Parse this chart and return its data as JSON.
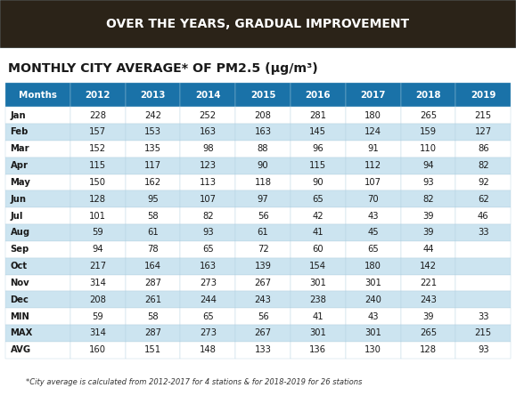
{
  "title": "OVER THE YEARS, GRADUAL IMPROVEMENT",
  "subtitle_main": "MONTHLY CITY AVERAGE* OF PM2.5 (",
  "subtitle_unit": "μg/m",
  "subtitle_exp": "3",
  "subtitle_end": ")",
  "footnote": "*City average is calculated from 2012-2017 for 4 stations & for 2018-2019 for 26 stations",
  "title_bg": "#2b2318",
  "title_fg": "#ffffff",
  "header_bg": "#1a72a8",
  "header_fg": "#ffffff",
  "alt_row_color": "#cce4f0",
  "white_row_color": "#ffffff",
  "columns": [
    "Months",
    "2012",
    "2013",
    "2014",
    "2015",
    "2016",
    "2017",
    "2018",
    "2019"
  ],
  "rows": [
    [
      "Jan",
      "228",
      "242",
      "252",
      "208",
      "281",
      "180",
      "265",
      "215"
    ],
    [
      "Feb",
      "157",
      "153",
      "163",
      "163",
      "145",
      "124",
      "159",
      "127"
    ],
    [
      "Mar",
      "152",
      "135",
      "98",
      "88",
      "96",
      "91",
      "110",
      "86"
    ],
    [
      "Apr",
      "115",
      "117",
      "123",
      "90",
      "115",
      "112",
      "94",
      "82"
    ],
    [
      "May",
      "150",
      "162",
      "113",
      "118",
      "90",
      "107",
      "93",
      "92"
    ],
    [
      "Jun",
      "128",
      "95",
      "107",
      "97",
      "65",
      "70",
      "82",
      "62"
    ],
    [
      "Jul",
      "101",
      "58",
      "82",
      "56",
      "42",
      "43",
      "39",
      "46"
    ],
    [
      "Aug",
      "59",
      "61",
      "93",
      "61",
      "41",
      "45",
      "39",
      "33"
    ],
    [
      "Sep",
      "94",
      "78",
      "65",
      "72",
      "60",
      "65",
      "44",
      ""
    ],
    [
      "Oct",
      "217",
      "164",
      "163",
      "139",
      "154",
      "180",
      "142",
      ""
    ],
    [
      "Nov",
      "314",
      "287",
      "273",
      "267",
      "301",
      "301",
      "221",
      ""
    ],
    [
      "Dec",
      "208",
      "261",
      "244",
      "243",
      "238",
      "240",
      "243",
      ""
    ]
  ],
  "stat_rows": [
    [
      "MIN",
      "59",
      "58",
      "65",
      "56",
      "41",
      "43",
      "39",
      "33"
    ],
    [
      "MAX",
      "314",
      "287",
      "273",
      "267",
      "301",
      "301",
      "265",
      "215"
    ],
    [
      "AVG",
      "160",
      "151",
      "148",
      "133",
      "136",
      "130",
      "128",
      "93"
    ]
  ],
  "col_weights": [
    1.18,
    1.0,
    1.0,
    1.0,
    1.0,
    1.0,
    1.0,
    1.0,
    1.0
  ]
}
